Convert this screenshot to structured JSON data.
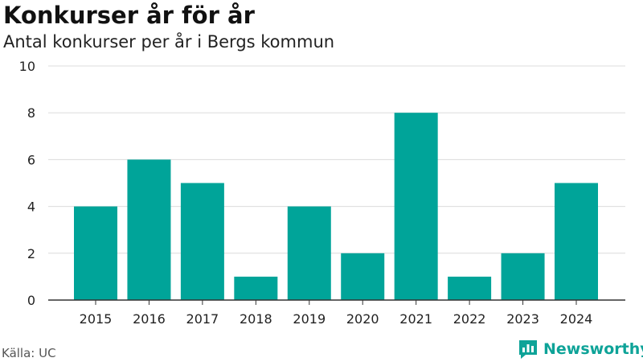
{
  "header": {
    "title": "Konkurser år för år",
    "subtitle": "Antal konkurser per år i Bergs kommun"
  },
  "chart_data": {
    "type": "bar",
    "categories": [
      "2015",
      "2016",
      "2017",
      "2018",
      "2019",
      "2020",
      "2021",
      "2022",
      "2023",
      "2024"
    ],
    "values": [
      4,
      6,
      5,
      1,
      4,
      2,
      8,
      1,
      2,
      5
    ],
    "title": "Konkurser år för år",
    "subtitle": "Antal konkurser per år i Bergs kommun",
    "xlabel": "",
    "ylabel": "",
    "ylim": [
      0,
      10
    ],
    "yticks": [
      "0",
      "2",
      "4",
      "6",
      "8",
      "10"
    ],
    "grid": true,
    "legend": "none",
    "bar_color": "#00a499"
  },
  "footer": {
    "source": "Källa: UC",
    "brand": "Newsworthy",
    "brand_icon": "bar-chart-chat-icon",
    "brand_color": "#0ea398"
  }
}
